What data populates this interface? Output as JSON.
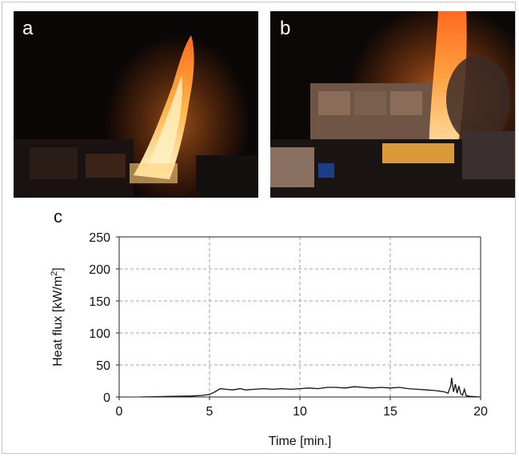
{
  "panels": [
    {
      "letter": "a",
      "icon": "fire-photo"
    },
    {
      "letter": "b",
      "icon": "fire-photo"
    },
    {
      "letter": "c"
    }
  ],
  "chart_data": {
    "type": "line",
    "xlabel": "Time [min.]",
    "ylabel": "Heat flux [kW/m²]",
    "xlim": [
      0,
      20
    ],
    "ylim": [
      0,
      250
    ],
    "x_ticks": [
      0,
      5,
      10,
      15,
      20
    ],
    "y_ticks": [
      0,
      50,
      100,
      150,
      200,
      250
    ],
    "grid": true,
    "series": [
      {
        "color": "#111111",
        "x": [
          1.2,
          2.0,
          3.0,
          4.0,
          4.6,
          5.0,
          5.3,
          5.6,
          5.9,
          6.3,
          6.7,
          7.0,
          7.5,
          8.0,
          8.5,
          9.0,
          9.5,
          10.0,
          10.5,
          11.0,
          11.5,
          12.0,
          12.5,
          13.0,
          13.5,
          14.0,
          14.5,
          15.0,
          15.5,
          16.0,
          16.5,
          17.0,
          17.5,
          18.0,
          18.2,
          18.35,
          18.4,
          18.5,
          18.6,
          18.7,
          18.8,
          18.9,
          19.0,
          19.1,
          19.2,
          19.4,
          20.0
        ],
        "y": [
          0,
          0.5,
          1,
          1.5,
          2.5,
          4,
          8,
          13,
          12,
          11,
          13,
          11,
          12,
          13,
          12,
          13,
          12,
          13,
          14,
          13,
          15,
          15,
          14,
          16,
          15,
          14,
          15,
          14,
          15,
          13,
          12,
          11,
          10,
          8,
          6,
          18,
          30,
          8,
          20,
          6,
          17,
          5,
          3,
          12,
          2,
          1,
          0
        ]
      }
    ]
  }
}
